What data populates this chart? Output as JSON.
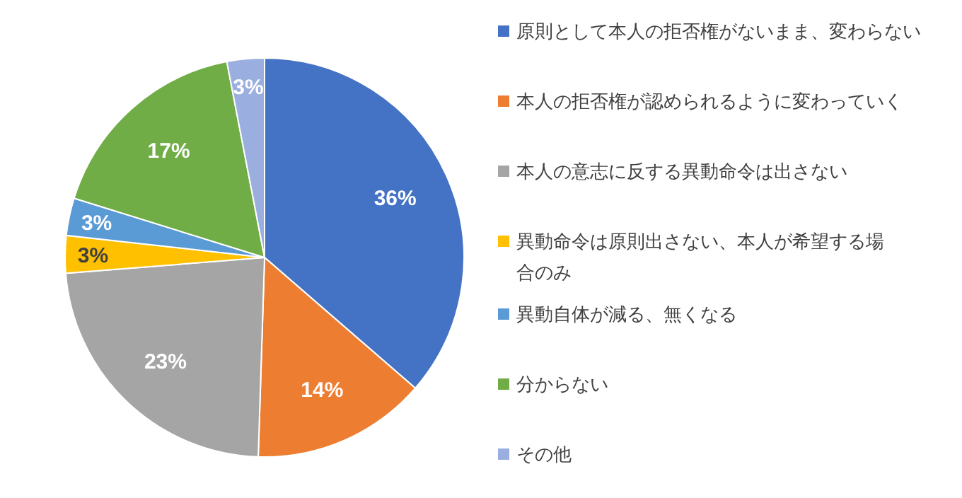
{
  "chart_data": {
    "type": "pie",
    "categories": [
      "原則として本人の拒否権がないまま、変わらない",
      "本人の拒否権が認められるように変わっていく",
      "本人の意志に反する異動命令は出さない",
      "異動命令は原則出さない、本人が希望する場合のみ",
      "異動自体が減る、無くなる",
      "分からない",
      "その他"
    ],
    "values": [
      36,
      14,
      23,
      3,
      3,
      17,
      3
    ],
    "colors": [
      "#4472c4",
      "#ed7d31",
      "#a5a5a5",
      "#ffc000",
      "#5b9bd5",
      "#70ad47",
      "#9aaee0"
    ],
    "value_labels": [
      "36%",
      "14%",
      "23%",
      "3%",
      "3%",
      "17%",
      "3%"
    ],
    "legend": "right"
  }
}
